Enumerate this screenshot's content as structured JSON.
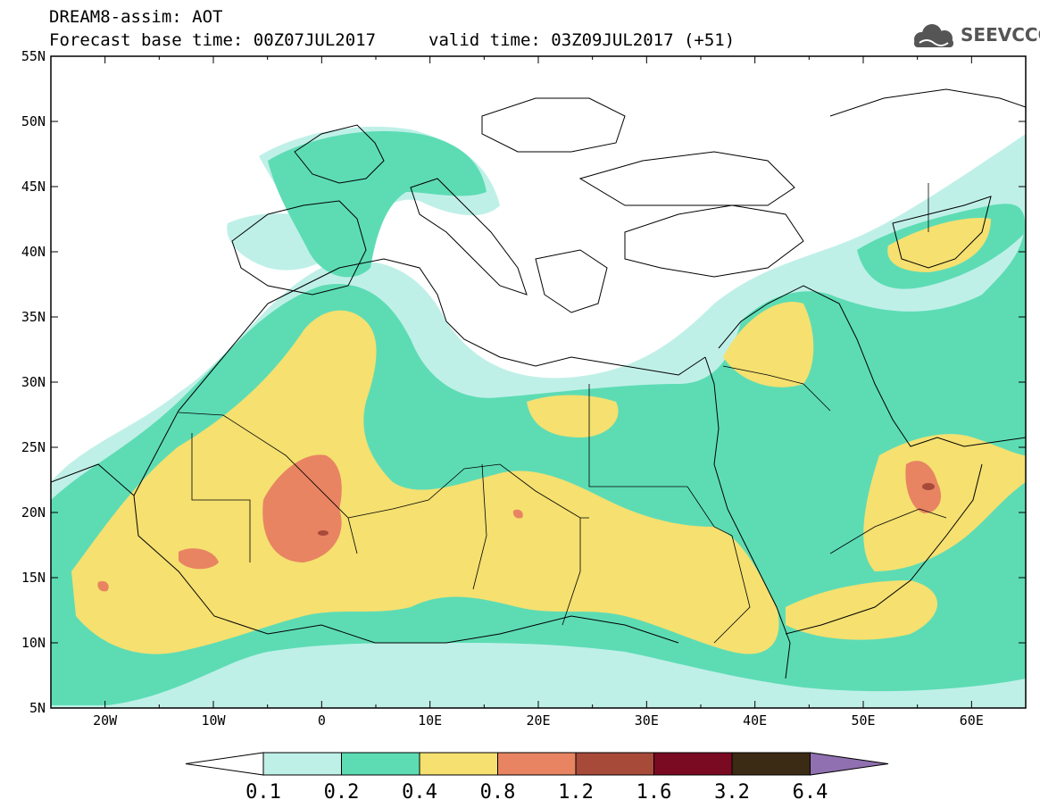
{
  "header": {
    "line1": "DREAM8-assim: AOT",
    "base_time": "Forecast base time: 00Z07JUL2017",
    "valid_time": "valid time: 03Z09JUL2017 (+51)"
  },
  "logo": {
    "text": "SEEVCCC",
    "icon": "cloud-icon"
  },
  "map": {
    "lon_ticks": [
      "20W",
      "10W",
      "0",
      "10E",
      "20E",
      "30E",
      "40E",
      "50E",
      "60E"
    ],
    "lat_ticks": [
      "55N",
      "50N",
      "45N",
      "40N",
      "35N",
      "30N",
      "25N",
      "20N",
      "15N",
      "10N",
      "5N"
    ],
    "lon_range": [
      -25,
      65
    ],
    "lat_range": [
      5,
      55
    ]
  },
  "colorbar": {
    "labels": [
      "0.1",
      "0.2",
      "0.4",
      "0.8",
      "1.2",
      "1.6",
      "3.2",
      "6.4"
    ],
    "colors": {
      "c01_02": "#bff0e8",
      "c02_04": "#5ddcb4",
      "c04_08": "#f5e070",
      "c08_12": "#e88462",
      "c12_16": "#a84a3a",
      "c16_32": "#7a0a22",
      "c32_64": "#3b2a14",
      "over": "#9070b0"
    }
  }
}
